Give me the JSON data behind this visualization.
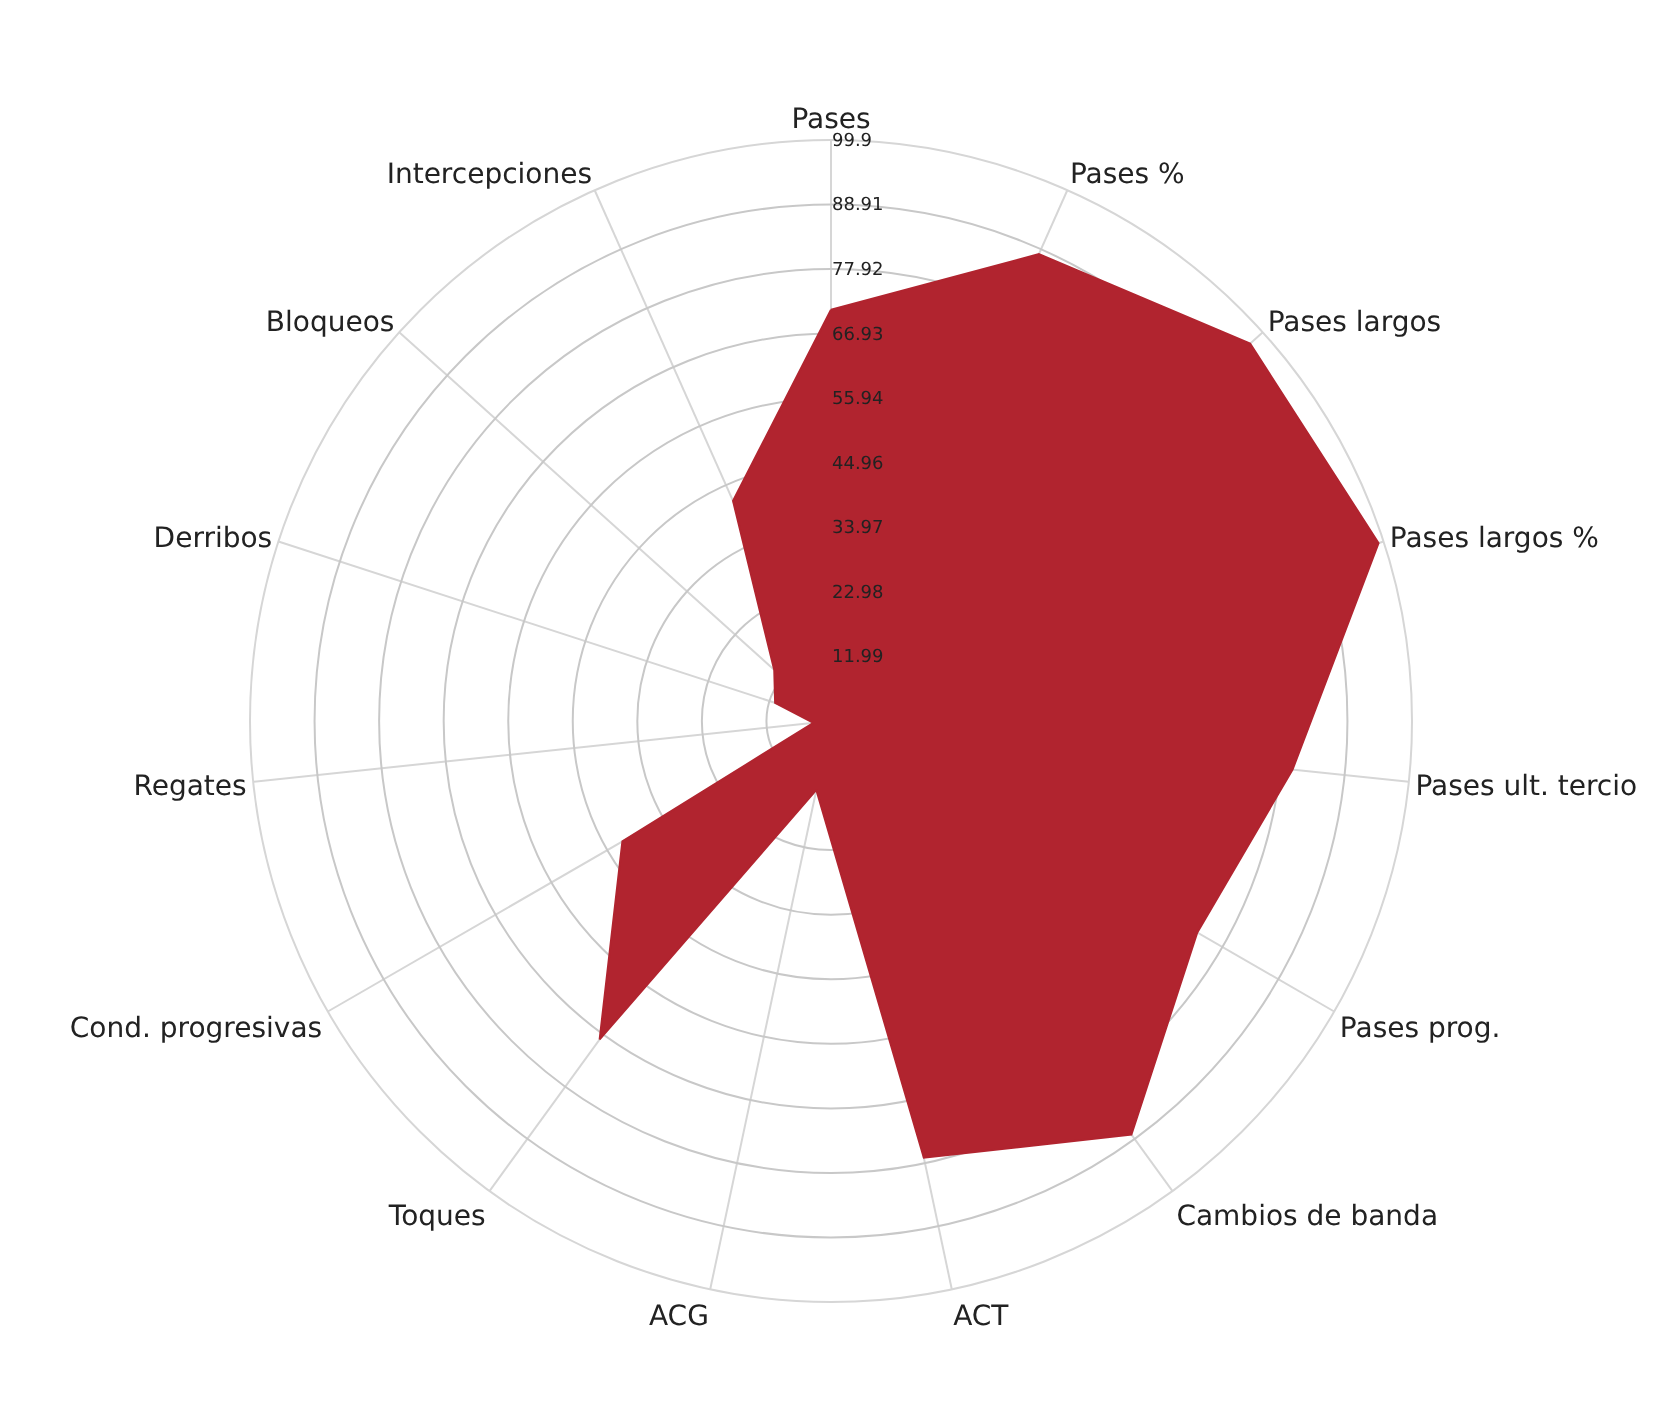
{
  "chart_data": {
    "type": "radar",
    "categories": [
      "Pases",
      "Pases %",
      "Pases largos",
      "Pases largos %",
      "Pases ult. tercio",
      "Pases prog.",
      "Cambios de banda",
      "ACT",
      "ACG",
      "Toques",
      "Cond. progresivas",
      "Regates",
      "Derribos",
      "Bloqueos",
      "Intercepciones"
    ],
    "series": [
      {
        "color": "#b1242f",
        "values": [
          71,
          88,
          97,
          99,
          80,
          73,
          88,
          77,
          13,
          68,
          42,
          4,
          11,
          14,
          42
        ]
      }
    ],
    "ylim": [
      1,
      99.9
    ],
    "yticks": [
      11.99,
      22.98,
      33.97,
      44.96,
      55.94,
      66.93,
      77.92,
      88.91,
      99.9
    ],
    "grid": true
  }
}
